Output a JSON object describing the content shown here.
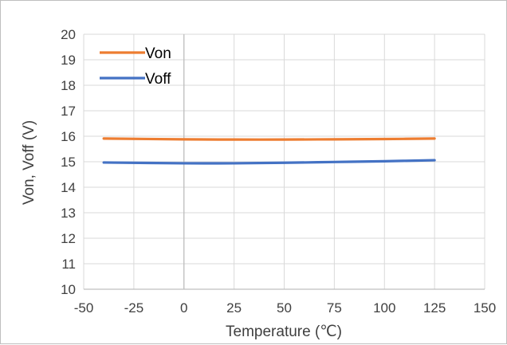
{
  "chart_data": {
    "type": "line",
    "title": "",
    "xlabel": "Temperature (℃)",
    "ylabel": "Von, Voff (V)",
    "xlim": [
      -50,
      150
    ],
    "ylim": [
      10,
      20
    ],
    "x_ticks": [
      "-50",
      "-25",
      "0",
      "25",
      "50",
      "75",
      "100",
      "125",
      "150"
    ],
    "y_ticks": [
      "10",
      "11",
      "12",
      "13",
      "14",
      "15",
      "16",
      "17",
      "18",
      "19",
      "20"
    ],
    "grid": true,
    "legend_position": "top-left",
    "series": [
      {
        "name": "Von",
        "color": "#ED7D31",
        "x": [
          -40,
          0,
          25,
          50,
          75,
          100,
          125
        ],
        "y": [
          15.91,
          15.88,
          15.87,
          15.87,
          15.88,
          15.89,
          15.91
        ]
      },
      {
        "name": "Voff",
        "color": "#4472C4",
        "x": [
          -40,
          0,
          25,
          50,
          75,
          100,
          125
        ],
        "y": [
          14.97,
          14.94,
          14.94,
          14.96,
          14.99,
          15.02,
          15.06
        ]
      }
    ]
  }
}
